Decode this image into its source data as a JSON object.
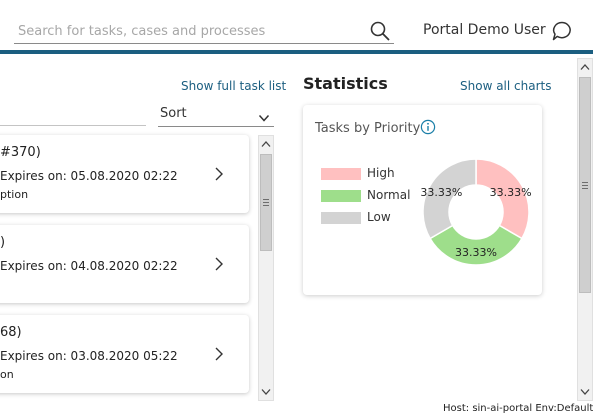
{
  "header": {
    "search_placeholder": "Search for tasks, cases and processes",
    "user_name": "Portal Demo User",
    "brand_color": "#1b5e80"
  },
  "tasks_panel": {
    "show_full_list_label": "Show full task list",
    "sort_label": "Sort",
    "tasks": [
      {
        "title": "#370)",
        "expiry": "Expires on: 05.08.2020 02:22",
        "description": "ption"
      },
      {
        "title": ")",
        "expiry": "Expires on: 04.08.2020 02:22",
        "description": ""
      },
      {
        "title": "68)",
        "expiry": "Expires on: 03.08.2020 05:22",
        "description": "on"
      }
    ]
  },
  "statistics": {
    "title": "Statistics",
    "show_all_label": "Show all charts"
  },
  "chart_data": {
    "type": "pie",
    "title": "Tasks by Priority",
    "legend_position": "left",
    "categories": [
      "High",
      "Normal",
      "Low"
    ],
    "values": [
      33.33,
      33.33,
      33.33
    ],
    "labels": [
      "33.33%",
      "33.33%",
      "33.33%"
    ],
    "colors": [
      "#ffc0c0",
      "#9ede8b",
      "#d3d3d3"
    ],
    "donut": true
  },
  "footer": {
    "host_text": "Host: sin-ai-portal Env:Default"
  }
}
